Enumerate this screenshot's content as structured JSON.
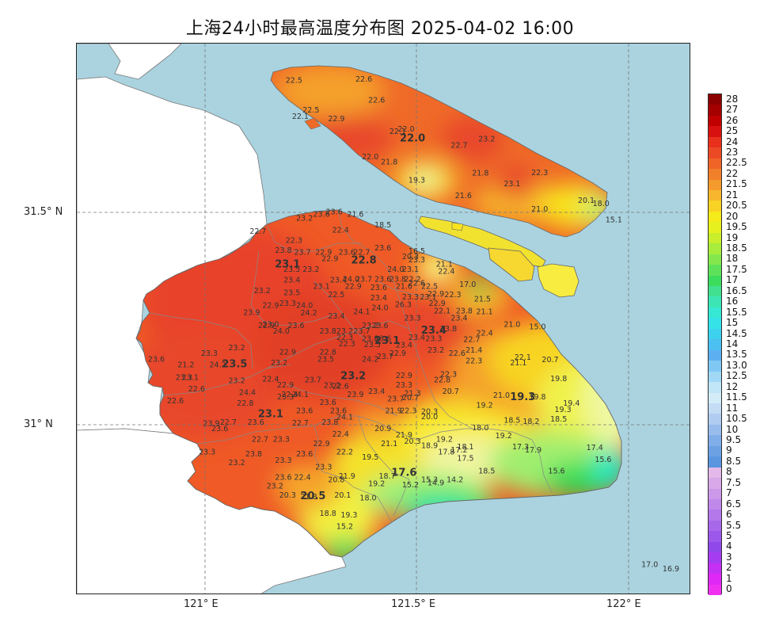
{
  "title": "上海24小时最高温度分布图 2025-04-02 16:00",
  "axes": {
    "lat_ticks": [
      "31.5° N",
      "31° N"
    ],
    "lon_ticks": [
      "121° E",
      "121.5° E",
      "122° E"
    ]
  },
  "colors": {
    "sea": "#aad3df",
    "land_outside": "#ffffff",
    "hot": "#e8422a",
    "warm": "#f07a28",
    "mild": "#f4a527",
    "cool": "#f8e41f",
    "cooler": "#e8f56a",
    "green": "#41e04a",
    "green_light": "#9ef07a"
  },
  "legend": {
    "labels": [
      "28",
      "27",
      "26",
      "25",
      "24",
      "23",
      "22.5",
      "22",
      "21.5",
      "21",
      "20.5",
      "20",
      "19.5",
      "19",
      "18.5",
      "18",
      "17.5",
      "17",
      "16.5",
      "16",
      "15.5",
      "15",
      "14.5",
      "14",
      "13.5",
      "13.0",
      "12.5",
      "12",
      "11.5",
      "11",
      "10.5",
      "10",
      "9.5",
      "9",
      "8.5",
      "8",
      "7.5",
      "7",
      "6.5",
      "6",
      "5.5",
      "5",
      "4",
      "3",
      "2",
      "1",
      "0"
    ],
    "colors": [
      "#8b0000",
      "#a40000",
      "#c00000",
      "#d81010",
      "#e8301c",
      "#ec4a24",
      "#f06428",
      "#f27f2a",
      "#f59a2c",
      "#f7b62e",
      "#f8d224",
      "#f5ea1a",
      "#e6f01e",
      "#c9ee2c",
      "#a8ec3c",
      "#84e84c",
      "#5ee25a",
      "#3cdc5c",
      "#40e090",
      "#3ce6b4",
      "#36e8d4",
      "#34e2e8",
      "#3cd2ee",
      "#4cc0f0",
      "#5cb0f2",
      "#80c8f4",
      "#a0d8f6",
      "#c0e6f8",
      "#d4ecf8",
      "#c4dcf4",
      "#b0ccf0",
      "#98bcec",
      "#80aee8",
      "#6ca2e4",
      "#5a96e0",
      "#e4b8e8",
      "#d8a8e8",
      "#cc98ea",
      "#c088ea",
      "#b478ea",
      "#a868ea",
      "#9c58ea",
      "#9048ea",
      "#a63cf0",
      "#c430f4",
      "#e028f6",
      "#f030f0"
    ]
  },
  "districts": [
    {
      "name": "22.0",
      "lon": 121.49,
      "lat": 31.667
    },
    {
      "name": "22.8",
      "lon": 121.375,
      "lat": 31.38
    },
    {
      "name": "23.1",
      "lon": 121.195,
      "lat": 31.37
    },
    {
      "name": "23.4",
      "lon": 121.54,
      "lat": 31.215
    },
    {
      "name": "23.1",
      "lon": 121.43,
      "lat": 31.19
    },
    {
      "name": "23.5",
      "lon": 121.07,
      "lat": 31.135
    },
    {
      "name": "23.2",
      "lon": 121.35,
      "lat": 31.107
    },
    {
      "name": "19.3",
      "lon": 121.75,
      "lat": 31.058
    },
    {
      "name": "23.1",
      "lon": 121.155,
      "lat": 31.018
    },
    {
      "name": "17.6",
      "lon": 121.47,
      "lat": 30.88
    },
    {
      "name": "20.5",
      "lon": 121.255,
      "lat": 30.825
    }
  ],
  "stations": [
    {
      "v": "22.5",
      "lon": 121.21,
      "lat": 31.805
    },
    {
      "v": "22.6",
      "lon": 121.375,
      "lat": 31.808
    },
    {
      "v": "22.6",
      "lon": 121.405,
      "lat": 31.758
    },
    {
      "v": "22.5",
      "lon": 121.25,
      "lat": 31.735
    },
    {
      "v": "22.1",
      "lon": 121.225,
      "lat": 31.72
    },
    {
      "v": "22.9",
      "lon": 121.31,
      "lat": 31.715
    },
    {
      "v": "22.1",
      "lon": 121.455,
      "lat": 31.685
    },
    {
      "v": "22.0",
      "lon": 121.475,
      "lat": 31.69
    },
    {
      "v": "22.7",
      "lon": 121.6,
      "lat": 31.652
    },
    {
      "v": "23.2",
      "lon": 121.665,
      "lat": 31.667
    },
    {
      "v": "22.0",
      "lon": 121.39,
      "lat": 31.625
    },
    {
      "v": "21.8",
      "lon": 121.435,
      "lat": 31.613
    },
    {
      "v": "21.8",
      "lon": 121.65,
      "lat": 31.587
    },
    {
      "v": "22.3",
      "lon": 121.79,
      "lat": 31.588
    },
    {
      "v": "19.3",
      "lon": 121.5,
      "lat": 31.57
    },
    {
      "v": "23.1",
      "lon": 121.725,
      "lat": 31.562
    },
    {
      "v": "21.6",
      "lon": 121.61,
      "lat": 31.534
    },
    {
      "v": "21.0",
      "lon": 121.79,
      "lat": 31.502
    },
    {
      "v": "20.1",
      "lon": 121.9,
      "lat": 31.522
    },
    {
      "v": "18.0",
      "lon": 121.935,
      "lat": 31.515
    },
    {
      "v": "15.1",
      "lon": 121.965,
      "lat": 31.477
    },
    {
      "v": "23.2",
      "lon": 121.235,
      "lat": 31.48
    },
    {
      "v": "23.6",
      "lon": 121.275,
      "lat": 31.49
    },
    {
      "v": "23.6",
      "lon": 121.305,
      "lat": 31.495
    },
    {
      "v": "21.6",
      "lon": 121.355,
      "lat": 31.49
    },
    {
      "v": "18.5",
      "lon": 121.42,
      "lat": 31.465
    },
    {
      "v": "22.7",
      "lon": 121.125,
      "lat": 31.45
    },
    {
      "v": "22.4",
      "lon": 121.32,
      "lat": 31.452
    },
    {
      "v": "22.3",
      "lon": 121.21,
      "lat": 31.428
    },
    {
      "v": "23.8",
      "lon": 121.185,
      "lat": 31.405
    },
    {
      "v": "23.7",
      "lon": 121.23,
      "lat": 31.4
    },
    {
      "v": "22.9",
      "lon": 121.28,
      "lat": 31.4
    },
    {
      "v": "23.6",
      "lon": 121.335,
      "lat": 31.4
    },
    {
      "v": "22.7",
      "lon": 121.37,
      "lat": 31.4
    },
    {
      "v": "23.6",
      "lon": 121.42,
      "lat": 31.41
    },
    {
      "v": "16.5",
      "lon": 121.5,
      "lat": 31.403
    },
    {
      "v": "20.3",
      "lon": 121.485,
      "lat": 31.39
    },
    {
      "v": "22.9",
      "lon": 121.295,
      "lat": 31.385
    },
    {
      "v": "23.3",
      "lon": 121.5,
      "lat": 31.382
    },
    {
      "v": "21.1",
      "lon": 121.565,
      "lat": 31.372
    },
    {
      "v": "23.5",
      "lon": 121.205,
      "lat": 31.36
    },
    {
      "v": "23.2",
      "lon": 121.25,
      "lat": 31.36
    },
    {
      "v": "24.0",
      "lon": 121.45,
      "lat": 31.36
    },
    {
      "v": "23.1",
      "lon": 121.485,
      "lat": 31.36
    },
    {
      "v": "22.4",
      "lon": 121.57,
      "lat": 31.355
    },
    {
      "v": "23.4",
      "lon": 121.205,
      "lat": 31.335
    },
    {
      "v": "23.4",
      "lon": 121.315,
      "lat": 31.335
    },
    {
      "v": "24.0",
      "lon": 121.345,
      "lat": 31.337
    },
    {
      "v": "23.7",
      "lon": 121.375,
      "lat": 31.337
    },
    {
      "v": "23.6",
      "lon": 121.42,
      "lat": 31.337
    },
    {
      "v": "23.8",
      "lon": 121.455,
      "lat": 31.337
    },
    {
      "v": "22.2",
      "lon": 121.49,
      "lat": 31.337
    },
    {
      "v": "23.1",
      "lon": 121.275,
      "lat": 31.32
    },
    {
      "v": "22.9",
      "lon": 121.35,
      "lat": 31.32
    },
    {
      "v": "23.6",
      "lon": 121.41,
      "lat": 31.317
    },
    {
      "v": "21.6",
      "lon": 121.47,
      "lat": 31.32
    },
    {
      "v": "22.5",
      "lon": 121.53,
      "lat": 31.32
    },
    {
      "v": "22.6",
      "lon": 121.5,
      "lat": 31.327
    },
    {
      "v": "17.0",
      "lon": 121.62,
      "lat": 31.325
    },
    {
      "v": "23.2",
      "lon": 121.135,
      "lat": 31.31
    },
    {
      "v": "23.5",
      "lon": 121.205,
      "lat": 31.305
    },
    {
      "v": "22.5",
      "lon": 121.31,
      "lat": 31.3
    },
    {
      "v": "22.9",
      "lon": 121.545,
      "lat": 31.302
    },
    {
      "v": "22.3",
      "lon": 121.585,
      "lat": 31.3
    },
    {
      "v": "23.4",
      "lon": 121.41,
      "lat": 31.293
    },
    {
      "v": "23.3",
      "lon": 121.485,
      "lat": 31.295
    },
    {
      "v": "23.1",
      "lon": 121.527,
      "lat": 31.295
    },
    {
      "v": "21.5",
      "lon": 121.655,
      "lat": 31.29
    },
    {
      "v": "23.3",
      "lon": 121.195,
      "lat": 31.28
    },
    {
      "v": "24.0",
      "lon": 121.235,
      "lat": 31.275
    },
    {
      "v": "26.3",
      "lon": 121.468,
      "lat": 31.277
    },
    {
      "v": "22.9",
      "lon": 121.548,
      "lat": 31.28
    },
    {
      "v": "24.0",
      "lon": 121.413,
      "lat": 31.27
    },
    {
      "v": "22.1",
      "lon": 121.56,
      "lat": 31.262
    },
    {
      "v": "23.8",
      "lon": 121.612,
      "lat": 31.262
    },
    {
      "v": "21.1",
      "lon": 121.66,
      "lat": 31.26
    },
    {
      "v": "22.9",
      "lon": 121.155,
      "lat": 31.275
    },
    {
      "v": "24.1",
      "lon": 121.37,
      "lat": 31.26
    },
    {
      "v": "23.9",
      "lon": 121.11,
      "lat": 31.258
    },
    {
      "v": "24.2",
      "lon": 121.245,
      "lat": 31.257
    },
    {
      "v": "23.4",
      "lon": 121.31,
      "lat": 31.25
    },
    {
      "v": "23.3",
      "lon": 121.49,
      "lat": 31.245
    },
    {
      "v": "23.4",
      "lon": 121.6,
      "lat": 31.245
    },
    {
      "v": "23.0",
      "lon": 121.155,
      "lat": 31.23
    },
    {
      "v": "22.9",
      "lon": 121.145,
      "lat": 31.228
    },
    {
      "v": "23.6",
      "lon": 121.215,
      "lat": 31.228
    },
    {
      "v": "23.2",
      "lon": 121.39,
      "lat": 31.228
    },
    {
      "v": "23.6",
      "lon": 121.413,
      "lat": 31.228
    },
    {
      "v": "21.0",
      "lon": 121.725,
      "lat": 31.23
    },
    {
      "v": "15.0",
      "lon": 121.785,
      "lat": 31.225
    },
    {
      "v": "24.0",
      "lon": 121.18,
      "lat": 31.215
    },
    {
      "v": "23.8",
      "lon": 121.29,
      "lat": 31.215
    },
    {
      "v": "23.2",
      "lon": 121.33,
      "lat": 31.215
    },
    {
      "v": "23.7",
      "lon": 121.37,
      "lat": 31.215
    },
    {
      "v": "22.4",
      "lon": 121.66,
      "lat": 31.21
    },
    {
      "v": "23.8",
      "lon": 121.575,
      "lat": 31.22
    },
    {
      "v": "22.3",
      "lon": 121.33,
      "lat": 31.2
    },
    {
      "v": "23.6",
      "lon": 121.39,
      "lat": 31.197
    },
    {
      "v": "23.6",
      "lon": 121.42,
      "lat": 31.197
    },
    {
      "v": "23.4",
      "lon": 121.5,
      "lat": 31.2
    },
    {
      "v": "23.3",
      "lon": 121.54,
      "lat": 31.197
    },
    {
      "v": "22.7",
      "lon": 121.63,
      "lat": 31.195
    },
    {
      "v": "22.3",
      "lon": 121.335,
      "lat": 31.185
    },
    {
      "v": "23.5",
      "lon": 121.395,
      "lat": 31.183
    },
    {
      "v": "23.2",
      "lon": 121.075,
      "lat": 31.175
    },
    {
      "v": "22.9",
      "lon": 121.195,
      "lat": 31.165
    },
    {
      "v": "22.8",
      "lon": 121.29,
      "lat": 31.165
    },
    {
      "v": "23.4",
      "lon": 121.47,
      "lat": 31.182
    },
    {
      "v": "23.2",
      "lon": 121.545,
      "lat": 31.17
    },
    {
      "v": "21.4",
      "lon": 121.635,
      "lat": 31.17
    },
    {
      "v": "22.6",
      "lon": 121.595,
      "lat": 31.162
    },
    {
      "v": "22.1",
      "lon": 121.75,
      "lat": 31.153
    },
    {
      "v": "23.6",
      "lon": 120.885,
      "lat": 31.148
    },
    {
      "v": "23.3",
      "lon": 121.01,
      "lat": 31.162
    },
    {
      "v": "23.2",
      "lon": 121.175,
      "lat": 31.14
    },
    {
      "v": "23.5",
      "lon": 121.285,
      "lat": 31.148
    },
    {
      "v": "24.2",
      "lon": 121.39,
      "lat": 31.148
    },
    {
      "v": "23.7",
      "lon": 121.425,
      "lat": 31.155
    },
    {
      "v": "22.9",
      "lon": 121.455,
      "lat": 31.162
    },
    {
      "v": "22.3",
      "lon": 121.635,
      "lat": 31.145
    },
    {
      "v": "21.1",
      "lon": 121.74,
      "lat": 31.14
    },
    {
      "v": "20.7",
      "lon": 121.815,
      "lat": 31.147
    },
    {
      "v": "21.2",
      "lon": 120.955,
      "lat": 31.135
    },
    {
      "v": "24.2",
      "lon": 121.03,
      "lat": 31.135
    },
    {
      "v": "22.3",
      "lon": 121.575,
      "lat": 31.113
    },
    {
      "v": "22.9",
      "lon": 121.47,
      "lat": 31.11
    },
    {
      "v": "23.3",
      "lon": 120.95,
      "lat": 31.105
    },
    {
      "v": "23.1",
      "lon": 120.965,
      "lat": 31.105
    },
    {
      "v": "22.4",
      "lon": 121.155,
      "lat": 31.102
    },
    {
      "v": "23.7",
      "lon": 121.255,
      "lat": 31.1
    },
    {
      "v": "22.8",
      "lon": 121.56,
      "lat": 31.1
    },
    {
      "v": "19.8",
      "lon": 121.835,
      "lat": 31.103
    },
    {
      "v": "23.2",
      "lon": 121.075,
      "lat": 31.098
    },
    {
      "v": "22.9",
      "lon": 121.19,
      "lat": 31.088
    },
    {
      "v": "23.2",
      "lon": 121.3,
      "lat": 31.087
    },
    {
      "v": "22.6",
      "lon": 121.32,
      "lat": 31.085
    },
    {
      "v": "23.3",
      "lon": 121.47,
      "lat": 31.088
    },
    {
      "v": "22.6",
      "lon": 120.98,
      "lat": 31.078
    },
    {
      "v": "24.4",
      "lon": 121.1,
      "lat": 31.07
    },
    {
      "v": "20.7",
      "lon": 121.58,
      "lat": 31.073
    },
    {
      "v": "23.4",
      "lon": 121.405,
      "lat": 31.073
    },
    {
      "v": "21.3",
      "lon": 121.49,
      "lat": 31.068
    },
    {
      "v": "23.9",
      "lon": 121.355,
      "lat": 31.065
    },
    {
      "v": "21.0",
      "lon": 121.7,
      "lat": 31.063
    },
    {
      "v": "22.6",
      "lon": 120.93,
      "lat": 31.05
    },
    {
      "v": "23.3",
      "lon": 121.19,
      "lat": 31.06
    },
    {
      "v": "24.1",
      "lon": 121.225,
      "lat": 31.065
    },
    {
      "v": "22.4",
      "lon": 121.2,
      "lat": 31.065
    },
    {
      "v": "19.8",
      "lon": 121.785,
      "lat": 31.06
    },
    {
      "v": "23.7",
      "lon": 121.45,
      "lat": 31.055
    },
    {
      "v": "20.7",
      "lon": 121.485,
      "lat": 31.058
    },
    {
      "v": "22.8",
      "lon": 121.095,
      "lat": 31.045
    },
    {
      "v": "23.6",
      "lon": 121.29,
      "lat": 31.047
    },
    {
      "v": "19.2",
      "lon": 121.66,
      "lat": 31.04
    },
    {
      "v": "19.4",
      "lon": 121.865,
      "lat": 31.045
    },
    {
      "v": "23.6",
      "lon": 121.235,
      "lat": 31.027
    },
    {
      "v": "23.6",
      "lon": 121.315,
      "lat": 31.027
    },
    {
      "v": "22.3",
      "lon": 121.48,
      "lat": 31.027
    },
    {
      "v": "21.9",
      "lon": 121.445,
      "lat": 31.027
    },
    {
      "v": "20.3",
      "lon": 121.53,
      "lat": 31.025
    },
    {
      "v": "19.3",
      "lon": 121.845,
      "lat": 31.03
    },
    {
      "v": "20.0",
      "lon": 121.53,
      "lat": 31.013
    },
    {
      "v": "24.1",
      "lon": 121.33,
      "lat": 31.012
    },
    {
      "v": "23.6",
      "lon": 121.12,
      "lat": 31.0
    },
    {
      "v": "22.7",
      "lon": 121.225,
      "lat": 30.998
    },
    {
      "v": "23.8",
      "lon": 121.295,
      "lat": 31.0
    },
    {
      "v": "18.5",
      "lon": 121.725,
      "lat": 31.005
    },
    {
      "v": "18.2",
      "lon": 121.77,
      "lat": 31.002
    },
    {
      "v": "18.5",
      "lon": 121.835,
      "lat": 31.007
    },
    {
      "v": "23.9",
      "lon": 121.015,
      "lat": 30.997
    },
    {
      "v": "22.7",
      "lon": 121.055,
      "lat": 31.0
    },
    {
      "v": "23.6",
      "lon": 121.035,
      "lat": 30.985
    },
    {
      "v": "18.0",
      "lon": 121.65,
      "lat": 30.987
    },
    {
      "v": "20.9",
      "lon": 121.42,
      "lat": 30.985
    },
    {
      "v": "21.9",
      "lon": 121.47,
      "lat": 30.97
    },
    {
      "v": "22.4",
      "lon": 121.32,
      "lat": 30.972
    },
    {
      "v": "19.2",
      "lon": 121.705,
      "lat": 30.968
    },
    {
      "v": "22.7",
      "lon": 121.13,
      "lat": 30.96
    },
    {
      "v": "23.3",
      "lon": 121.18,
      "lat": 30.96
    },
    {
      "v": "19.2",
      "lon": 121.565,
      "lat": 30.96
    },
    {
      "v": "20.3",
      "lon": 121.49,
      "lat": 30.955
    },
    {
      "v": "22.9",
      "lon": 121.275,
      "lat": 30.95
    },
    {
      "v": "21.1",
      "lon": 121.435,
      "lat": 30.95
    },
    {
      "v": "17.3",
      "lon": 121.745,
      "lat": 30.942
    },
    {
      "v": "18.9",
      "lon": 121.53,
      "lat": 30.945
    },
    {
      "v": "18.1",
      "lon": 121.615,
      "lat": 30.942
    },
    {
      "v": "17.9",
      "lon": 121.775,
      "lat": 30.935
    },
    {
      "v": "17.4",
      "lon": 121.92,
      "lat": 30.94
    },
    {
      "v": "23.3",
      "lon": 121.005,
      "lat": 30.93
    },
    {
      "v": "23.8",
      "lon": 121.115,
      "lat": 30.925
    },
    {
      "v": "23.6",
      "lon": 121.235,
      "lat": 30.925
    },
    {
      "v": "22.2",
      "lon": 121.33,
      "lat": 30.93
    },
    {
      "v": "17.8",
      "lon": 121.57,
      "lat": 30.93
    },
    {
      "v": "17.2",
      "lon": 121.6,
      "lat": 30.935
    },
    {
      "v": "19.5",
      "lon": 121.39,
      "lat": 30.918
    },
    {
      "v": "17.5",
      "lon": 121.615,
      "lat": 30.915
    },
    {
      "v": "23.3",
      "lon": 121.185,
      "lat": 30.91
    },
    {
      "v": "15.6",
      "lon": 121.94,
      "lat": 30.912
    },
    {
      "v": "23.2",
      "lon": 121.075,
      "lat": 30.905
    },
    {
      "v": "23.3",
      "lon": 121.28,
      "lat": 30.895
    },
    {
      "v": "18.5",
      "lon": 121.665,
      "lat": 30.885
    },
    {
      "v": "15.6",
      "lon": 121.83,
      "lat": 30.885
    },
    {
      "v": "18.7",
      "lon": 121.43,
      "lat": 30.873
    },
    {
      "v": "23.6",
      "lon": 121.185,
      "lat": 30.87
    },
    {
      "v": "22.4",
      "lon": 121.23,
      "lat": 30.87
    },
    {
      "v": "21.9",
      "lon": 121.335,
      "lat": 30.873
    },
    {
      "v": "20.8",
      "lon": 121.31,
      "lat": 30.865
    },
    {
      "v": "15.3",
      "lon": 121.53,
      "lat": 30.865
    },
    {
      "v": "14.2",
      "lon": 121.59,
      "lat": 30.865
    },
    {
      "v": "14.9",
      "lon": 121.545,
      "lat": 30.857
    },
    {
      "v": "19.2",
      "lon": 121.405,
      "lat": 30.855
    },
    {
      "v": "15.2",
      "lon": 121.485,
      "lat": 30.853
    },
    {
      "v": "23.2",
      "lon": 121.165,
      "lat": 30.85
    },
    {
      "v": "20.3",
      "lon": 121.195,
      "lat": 30.828
    },
    {
      "v": "21.8",
      "lon": 121.245,
      "lat": 30.825
    },
    {
      "v": "20.1",
      "lon": 121.325,
      "lat": 30.828
    },
    {
      "v": "18.0",
      "lon": 121.385,
      "lat": 30.822
    },
    {
      "v": "18.8",
      "lon": 121.29,
      "lat": 30.785
    },
    {
      "v": "19.3",
      "lon": 121.34,
      "lat": 30.782
    },
    {
      "v": "15.2",
      "lon": 121.33,
      "lat": 30.755
    },
    {
      "v": "17.0",
      "lon": 122.05,
      "lat": 30.665
    },
    {
      "v": "16.9",
      "lon": 122.1,
      "lat": 30.655
    }
  ]
}
